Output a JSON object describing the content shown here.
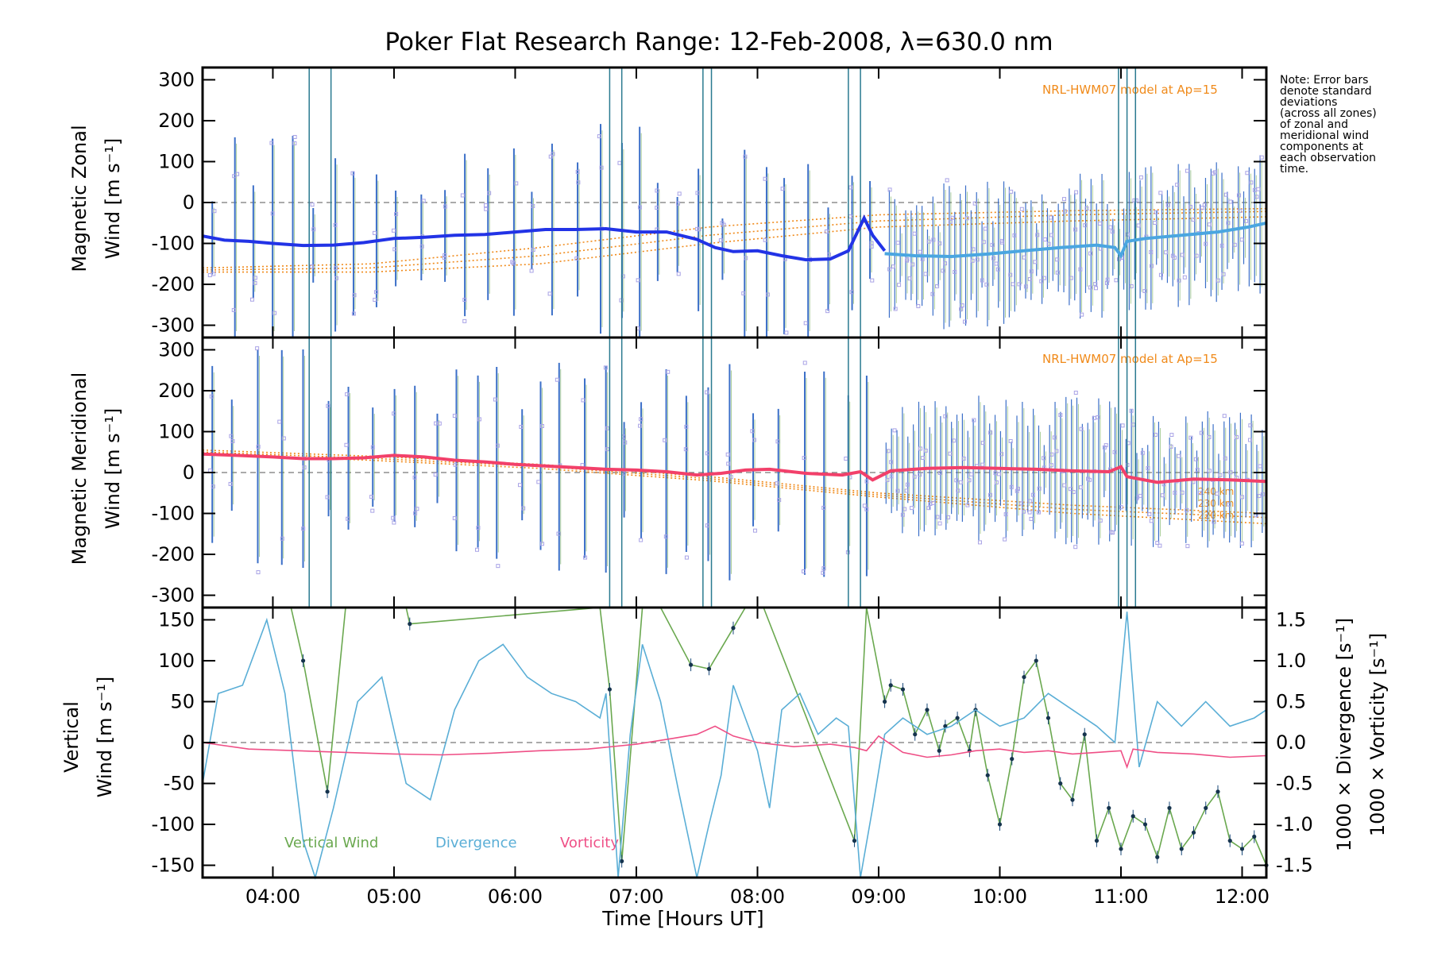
{
  "title": "Poker Flat Research Range: 12-Feb-2008, λ=630.0 nm",
  "note_lines": [
    "Note: Error bars",
    "denote standard",
    "deviations",
    "(across all zones)",
    "of zonal and",
    "meridional wind",
    "components at",
    "each observation",
    "time."
  ],
  "colors": {
    "zonal_before_09": "#2233e6",
    "zonal_after_09": "#4aa6e0",
    "meridional": "#f2406a",
    "vertical": "#6aa84f",
    "divergence": "#5aaed6",
    "vorticity": "#ef4f86",
    "model": "#f08a1a",
    "scatter": "#a9a3e6",
    "errbar": "#3b6fc8"
  },
  "chart_data": [
    {
      "type": "line",
      "panel": "top",
      "ylabel_line1": "Magnetic Zonal",
      "ylabel_line2": "Wind [m s⁻¹]",
      "ylim": [
        -330,
        330
      ],
      "yticks": [
        -300,
        -200,
        -100,
        0,
        100,
        200,
        300
      ],
      "model_label": "NRL-HWM07 model at Ap=15",
      "series": [
        {
          "color_key": "zonal_before_09",
          "x": [
            3.42,
            3.6,
            3.8,
            4.0,
            4.25,
            4.5,
            4.75,
            5.0,
            5.25,
            5.5,
            5.75,
            6.0,
            6.25,
            6.5,
            6.75,
            7.0,
            7.25,
            7.5,
            7.65,
            7.8,
            8.0,
            8.2,
            8.4,
            8.6,
            8.75,
            8.88,
            8.95,
            9.05
          ],
          "y": [
            -82,
            -92,
            -95,
            -100,
            -105,
            -104,
            -98,
            -88,
            -85,
            -80,
            -78,
            -72,
            -66,
            -66,
            -64,
            -72,
            -72,
            -90,
            -110,
            -120,
            -118,
            -130,
            -140,
            -138,
            -118,
            -38,
            -80,
            -118
          ]
        },
        {
          "color_key": "zonal_after_09",
          "x": [
            9.05,
            9.3,
            9.6,
            9.9,
            10.2,
            10.5,
            10.8,
            10.95,
            11.0,
            11.05,
            11.2,
            11.5,
            11.8,
            12.05,
            12.2
          ],
          "y": [
            -125,
            -130,
            -132,
            -126,
            -118,
            -110,
            -104,
            -110,
            -130,
            -95,
            -88,
            -80,
            -72,
            -60,
            -50
          ]
        }
      ]
    },
    {
      "type": "line",
      "panel": "middle",
      "ylabel_line1": "Magnetic Meridional",
      "ylabel_line2": "Wind [m s⁻¹]",
      "ylim": [
        -330,
        330
      ],
      "yticks": [
        -300,
        -200,
        -100,
        0,
        100,
        200,
        300
      ],
      "model_label": "NRL-HWM07 model at Ap=15",
      "model_alt_labels": [
        "240 km",
        "230 km",
        "220 km"
      ],
      "series": [
        {
          "color_key": "meridional",
          "x": [
            3.42,
            3.7,
            4.0,
            4.25,
            4.5,
            4.75,
            5.0,
            5.25,
            5.5,
            5.75,
            6.0,
            6.25,
            6.5,
            6.75,
            7.0,
            7.25,
            7.5,
            7.7,
            7.9,
            8.1,
            8.4,
            8.7,
            8.85,
            8.95,
            9.1,
            9.4,
            9.7,
            10.0,
            10.3,
            10.6,
            10.9,
            11.0,
            11.05,
            11.3,
            11.6,
            11.9,
            12.2
          ],
          "y": [
            45,
            42,
            38,
            34,
            34,
            36,
            42,
            38,
            30,
            26,
            20,
            16,
            12,
            8,
            6,
            2,
            -6,
            -2,
            6,
            8,
            -2,
            -6,
            2,
            -18,
            4,
            10,
            12,
            10,
            8,
            4,
            2,
            14,
            -10,
            -24,
            -16,
            -18,
            -22
          ]
        }
      ]
    },
    {
      "type": "line",
      "panel": "bottom",
      "ylabel_left_line1": "Vertical",
      "ylabel_left_line2": "Wind [m s⁻¹]",
      "ylabel_right_1": "1000 × Divergence [s⁻¹]",
      "ylabel_right_2": "1000 × Vorticity [s⁻¹]",
      "ylim": [
        -165,
        165
      ],
      "yticks": [
        -150,
        -100,
        -50,
        0,
        50,
        100,
        150
      ],
      "ylim_right": [
        -1.65,
        1.65
      ],
      "yticks_right": [
        -1.5,
        -1.0,
        -0.5,
        0.0,
        0.5,
        1.0,
        1.5
      ],
      "ytick_labels_right": [
        "-1.5",
        "-1.0",
        "-0.5",
        "0.0",
        "0.5",
        "1.0",
        "1.5"
      ],
      "xticks": [
        4,
        5,
        6,
        7,
        8,
        9,
        10,
        11,
        12
      ],
      "xtick_labels": [
        "04:00",
        "05:00",
        "06:00",
        "07:00",
        "08:00",
        "09:00",
        "10:00",
        "11:00",
        "12:00"
      ],
      "xlabel": "Time [Hours UT]",
      "xlim": [
        3.42,
        12.2
      ],
      "legend": [
        "Vertical Wind",
        "Divergence",
        "Vorticity"
      ],
      "series": [
        {
          "name": "Vertical Wind",
          "color_key": "vertical",
          "x": [
            4.15,
            4.25,
            4.45,
            4.6,
            4.75,
            5.1,
            5.13,
            6.7,
            6.78,
            6.88,
            7.05,
            7.2,
            7.45,
            7.6,
            7.8,
            7.9,
            8.05,
            8.8,
            8.9,
            9.05,
            9.1,
            9.2,
            9.3,
            9.4,
            9.5,
            9.55,
            9.65,
            9.75,
            9.8,
            9.9,
            10.0,
            10.1,
            10.2,
            10.3,
            10.4,
            10.5,
            10.6,
            10.7,
            10.8,
            10.9,
            11.0,
            11.1,
            11.2,
            11.3,
            11.4,
            11.5,
            11.6,
            11.7,
            11.8,
            11.9,
            12.0,
            12.1,
            12.2
          ],
          "y": [
            165,
            100,
            -60,
            165,
            165,
            165,
            145,
            165,
            65,
            -145,
            165,
            165,
            95,
            90,
            140,
            165,
            165,
            -120,
            165,
            50,
            70,
            65,
            10,
            40,
            -10,
            20,
            30,
            -10,
            40,
            -40,
            -100,
            -20,
            80,
            100,
            30,
            -50,
            -70,
            10,
            -120,
            -80,
            -130,
            -90,
            -100,
            -140,
            -80,
            -130,
            -110,
            -80,
            -60,
            -120,
            -130,
            -115,
            -150
          ]
        },
        {
          "name": "Divergence",
          "color_key": "divergence",
          "axis": "right",
          "x": [
            3.42,
            3.55,
            3.75,
            3.95,
            4.1,
            4.25,
            4.35,
            4.5,
            4.7,
            4.9,
            5.1,
            5.3,
            5.5,
            5.7,
            5.9,
            6.1,
            6.3,
            6.5,
            6.7,
            6.75,
            6.85,
            6.95,
            7.05,
            7.2,
            7.35,
            7.5,
            7.6,
            7.7,
            7.8,
            7.9,
            8.0,
            8.1,
            8.2,
            8.35,
            8.5,
            8.65,
            8.75,
            8.85,
            8.95,
            9.05,
            9.2,
            9.4,
            9.6,
            9.8,
            10.0,
            10.2,
            10.4,
            10.6,
            10.8,
            10.95,
            11.05,
            11.15,
            11.3,
            11.5,
            11.7,
            11.9,
            12.1,
            12.2
          ],
          "y": [
            -0.5,
            0.6,
            0.7,
            1.5,
            0.6,
            -1.2,
            -1.65,
            -0.8,
            0.5,
            0.8,
            -0.5,
            -0.7,
            0.4,
            1.0,
            1.2,
            0.8,
            0.6,
            0.5,
            0.3,
            0.6,
            -1.65,
            0.1,
            1.2,
            0.5,
            -0.6,
            -1.65,
            -1.0,
            -0.4,
            0.7,
            0.3,
            -0.1,
            -0.8,
            0.4,
            0.6,
            0.1,
            0.3,
            0.2,
            -1.65,
            -0.8,
            0.1,
            0.3,
            0.1,
            0.2,
            0.4,
            0.2,
            0.3,
            0.6,
            0.4,
            0.2,
            0.0,
            1.6,
            -0.3,
            0.5,
            0.2,
            0.5,
            0.2,
            0.3,
            0.4
          ]
        },
        {
          "name": "Vorticity",
          "color_key": "vorticity",
          "axis": "right",
          "x": [
            3.42,
            3.8,
            4.2,
            4.6,
            5.0,
            5.4,
            5.8,
            6.2,
            6.6,
            7.0,
            7.3,
            7.5,
            7.65,
            7.8,
            8.0,
            8.3,
            8.6,
            8.8,
            8.9,
            9.0,
            9.2,
            9.4,
            9.6,
            9.8,
            10.0,
            10.2,
            10.4,
            10.6,
            10.8,
            11.0,
            11.05,
            11.1,
            11.3,
            11.6,
            11.9,
            12.2
          ],
          "y": [
            0.0,
            -0.08,
            -0.1,
            -0.12,
            -0.14,
            -0.15,
            -0.13,
            -0.1,
            -0.08,
            -0.02,
            0.05,
            0.1,
            0.2,
            0.08,
            0.0,
            -0.05,
            -0.02,
            -0.06,
            -0.1,
            0.08,
            -0.12,
            -0.18,
            -0.15,
            -0.1,
            -0.08,
            -0.12,
            -0.1,
            -0.14,
            -0.12,
            -0.1,
            -0.3,
            -0.08,
            -0.12,
            -0.14,
            -0.18,
            -0.16
          ]
        }
      ]
    }
  ]
}
